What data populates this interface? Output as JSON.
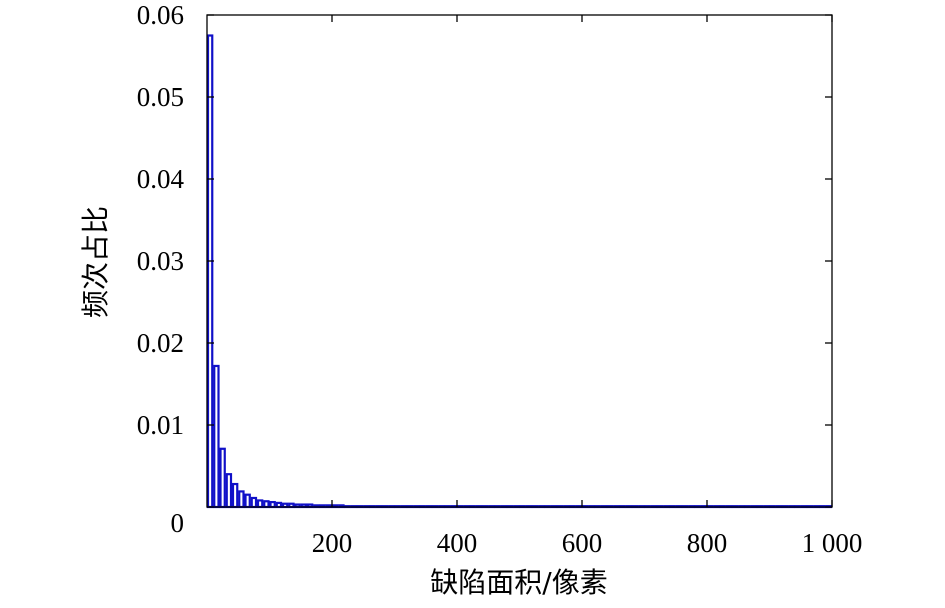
{
  "chart_data": {
    "type": "bar",
    "title": "",
    "xlabel": "缺陷面积/像素",
    "ylabel": "频次占比",
    "xlim": [
      0,
      1000
    ],
    "ylim": [
      0,
      0.06
    ],
    "xticks": [
      200,
      400,
      600,
      800,
      1000
    ],
    "xtick_labels": [
      "200",
      "400",
      "600",
      "800",
      "1 000"
    ],
    "yticks": [
      0,
      0.01,
      0.02,
      0.03,
      0.04,
      0.05,
      0.06
    ],
    "ytick_labels": [
      "0",
      "0.01",
      "0.02",
      "0.03",
      "0.04",
      "0.05",
      "0.06"
    ],
    "grid": false,
    "bin_width": 10,
    "bin_start": 0,
    "values": [
      0.0575,
      0.0172,
      0.0071,
      0.004,
      0.0028,
      0.0019,
      0.0015,
      0.0011,
      0.0008,
      0.0007,
      0.0006,
      0.0005,
      0.0004,
      0.0004,
      0.0003,
      0.0003,
      0.0003,
      0.0002,
      0.0002,
      0.0002,
      0.0002,
      0.0002,
      0.0001,
      0.0001,
      0.0001,
      0.0001,
      0.0001,
      0.0001,
      0.0001,
      0.0001,
      0.0001,
      0.0001,
      0.0001,
      0.0001,
      0.0001,
      0.0001,
      0.0001,
      0.0001,
      0.0001,
      0.0001,
      0.0001,
      0.0001,
      0.0001,
      0.0001,
      0.0001,
      0.0001,
      0.0001,
      0.0001,
      0.0001,
      0.0001,
      0.0001,
      0.0001,
      0.0001,
      0.0001,
      0.0001,
      0.0001,
      0.0001,
      0.0001,
      0.0001,
      0.0001,
      0.0001,
      0.0001,
      0.0001,
      0.0001,
      0.0001,
      0.0001,
      0.0001,
      0.0001,
      0.0001,
      0.0001,
      0.0001,
      0.0001,
      0.0001,
      0.0001,
      0.0001,
      0.0001,
      0.0001,
      0.0001,
      0.0001,
      0.0001,
      0.0001,
      0.0001,
      0.0001,
      0.0001,
      0.0001,
      0.0001,
      0.0001,
      0.0001,
      0.0001,
      0.0001,
      0.0001,
      0.0001,
      0.0001,
      0.0001,
      0.0001,
      0.0001,
      0.0001,
      0.0001,
      0.0001,
      0.0001
    ],
    "bar_color": "#1010c8"
  }
}
